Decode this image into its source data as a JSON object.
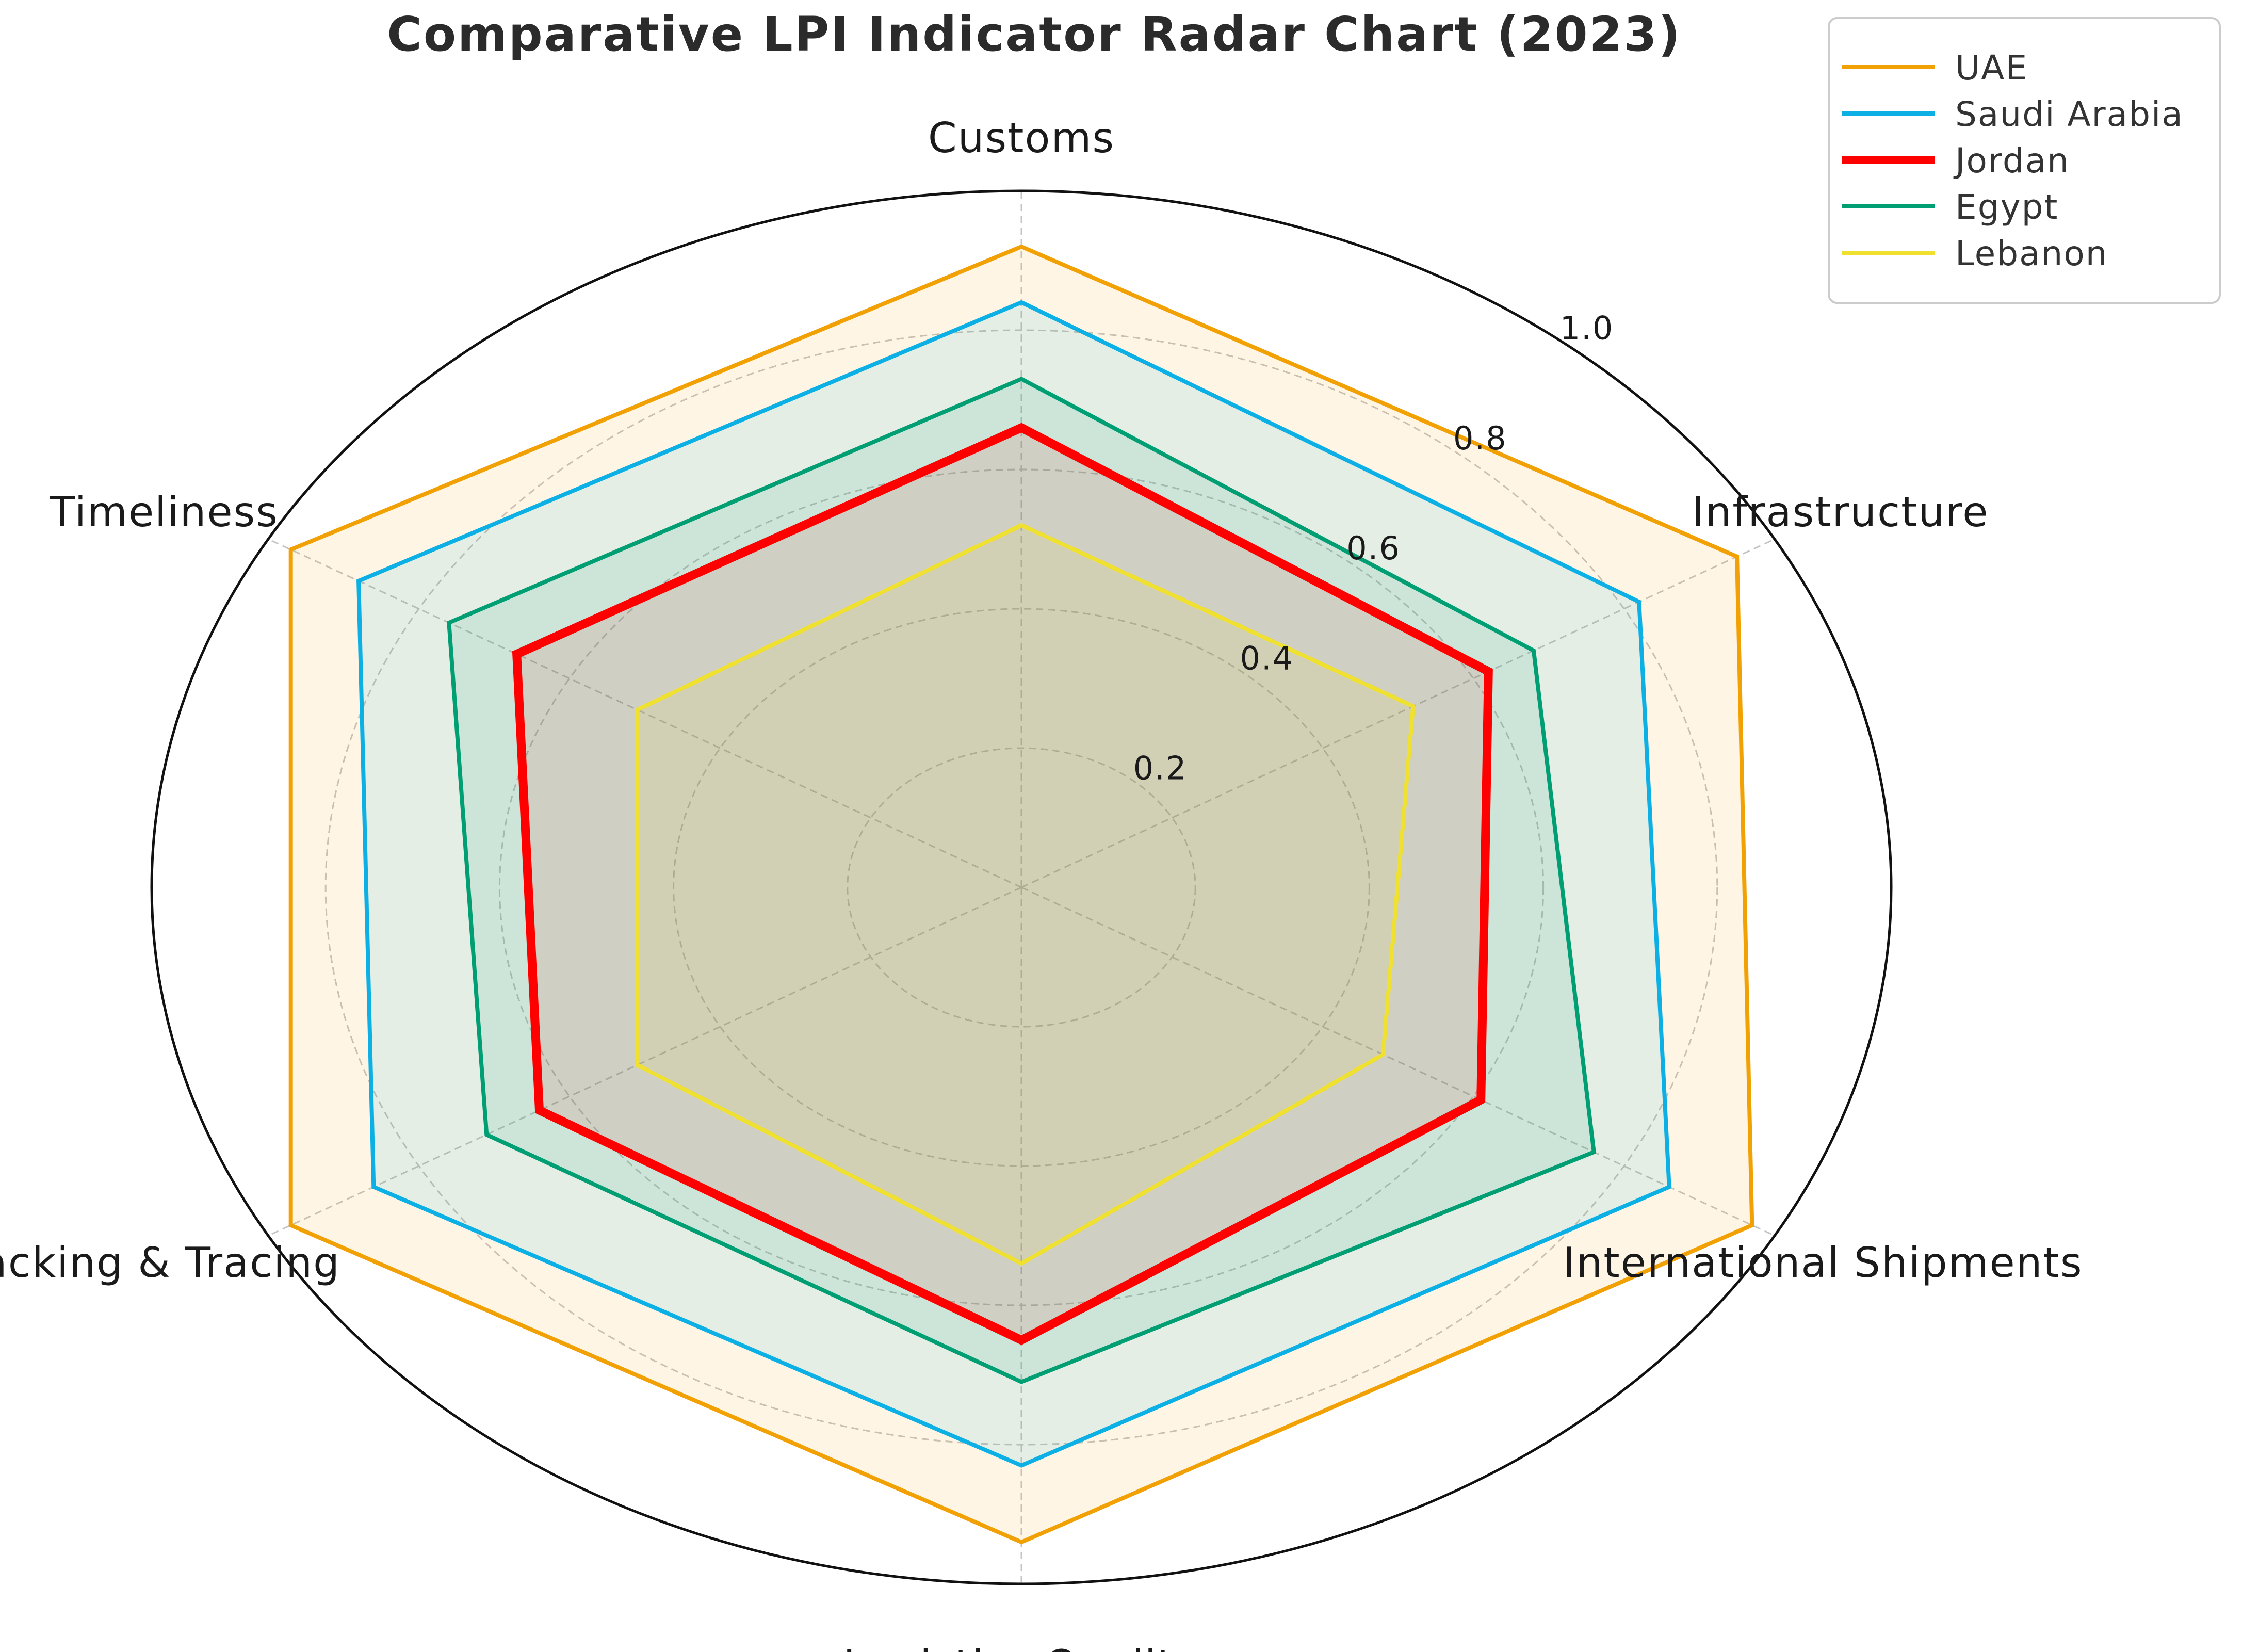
{
  "title": "Comparative LPI Indicator Radar Chart (2023)",
  "chart_data": {
    "type": "radar",
    "title": "Comparative LPI Indicator Radar Chart (2023)",
    "categories": [
      "Customs",
      "Infrastructure",
      "International Shipments",
      "Logistics Quality",
      "Tracking & Tracing",
      "Timeliness"
    ],
    "rlim": [
      0,
      1.0
    ],
    "rticks": [
      "0.2",
      "0.4",
      "0.6",
      "0.8",
      "1.0"
    ],
    "rtick_values": [
      0.2,
      0.4,
      0.6,
      0.8,
      1.0
    ],
    "grid": true,
    "legend_position": "top-right",
    "series": [
      {
        "name": "UAE",
        "color": "#F2A104",
        "values": [
          0.92,
          0.95,
          0.97,
          0.94,
          0.97,
          0.97
        ]
      },
      {
        "name": "Saudi Arabia",
        "color": "#0CB0E4",
        "values": [
          0.84,
          0.82,
          0.86,
          0.83,
          0.86,
          0.88
        ]
      },
      {
        "name": "Jordan",
        "color": "#FF0000",
        "values": [
          0.66,
          0.62,
          0.61,
          0.65,
          0.64,
          0.67
        ]
      },
      {
        "name": "Egypt",
        "color": "#009E73",
        "values": [
          0.73,
          0.68,
          0.76,
          0.71,
          0.71,
          0.76
        ]
      },
      {
        "name": "Lebanon",
        "color": "#F0E130",
        "values": [
          0.52,
          0.52,
          0.48,
          0.54,
          0.51,
          0.51
        ]
      }
    ]
  }
}
